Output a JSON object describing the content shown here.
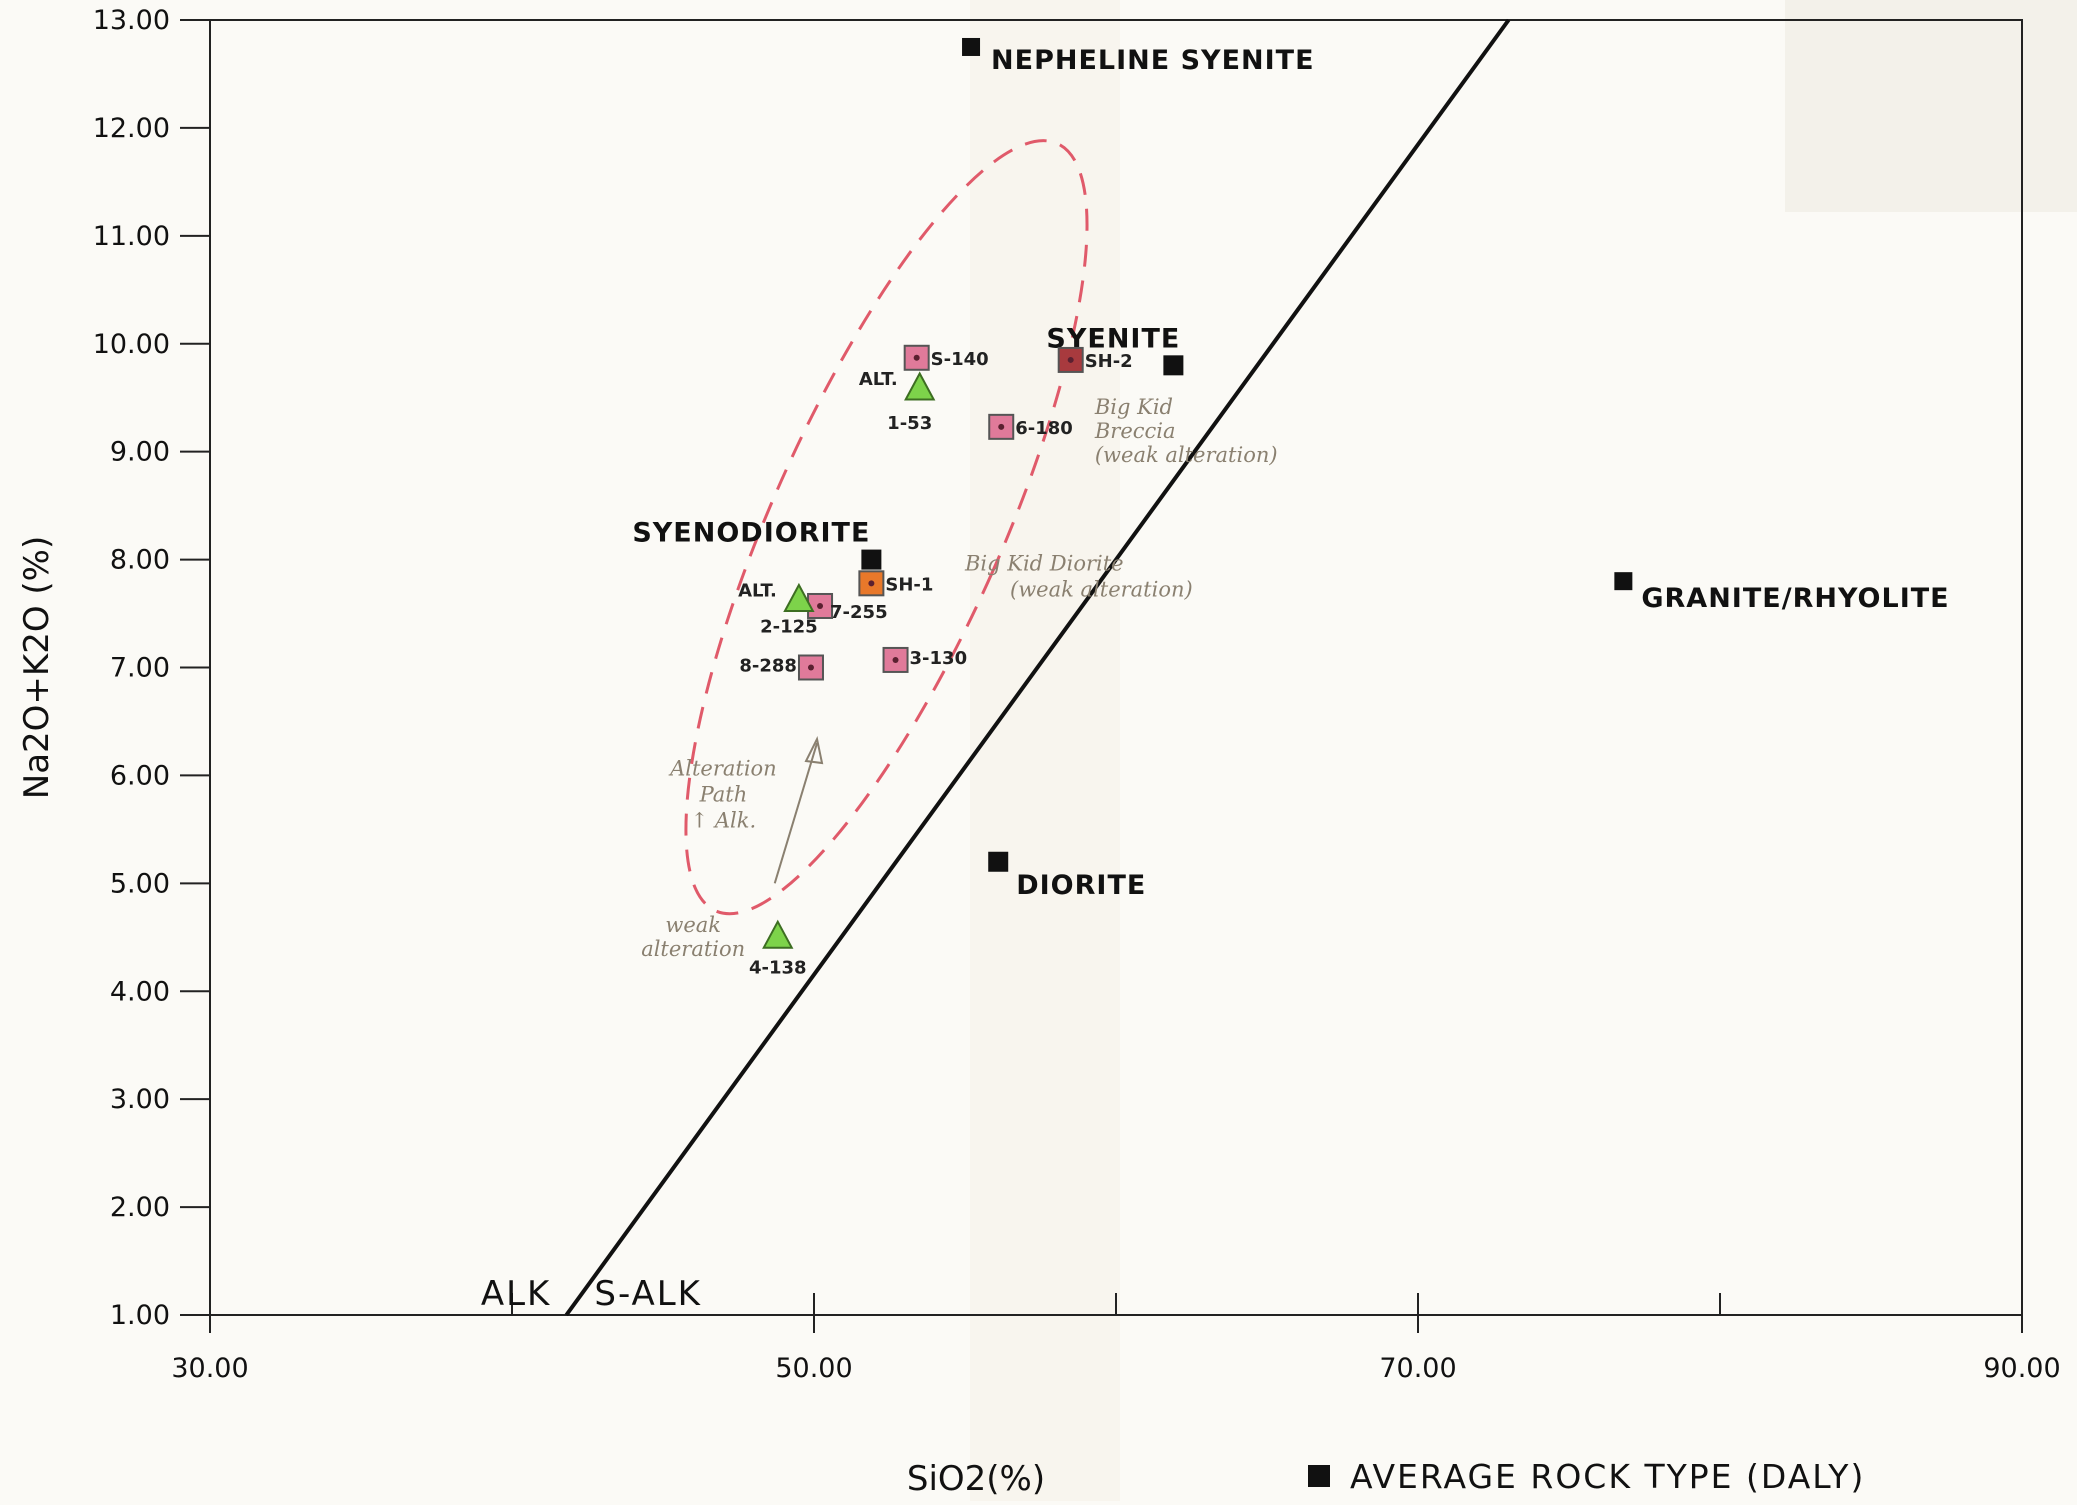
{
  "chart_data": {
    "type": "scatter",
    "xlabel": "SiO2 (%)",
    "ylabel": "Na2O+K2O (%)",
    "xlim": [
      30,
      90
    ],
    "ylim": [
      1,
      13
    ],
    "x_ticks": [
      "30.00",
      "50.00",
      "70.00",
      "90.00"
    ],
    "y_ticks": [
      "1.00",
      "2.00",
      "3.00",
      "4.00",
      "5.00",
      "6.00",
      "7.00",
      "8.00",
      "9.00",
      "10.00",
      "11.00",
      "12.00",
      "13.00"
    ],
    "grid": false,
    "legend": {
      "label": "AVERAGE ROCK TYPE (DALY)",
      "placement": "bottom-right"
    },
    "dividing_line": {
      "points": [
        [
          41.8,
          1.0
        ],
        [
          73.0,
          13.0
        ]
      ],
      "left_label": "ALK",
      "right_label": "S-ALK"
    },
    "reference_rocks": [
      {
        "name": "NEPHELINE SYENITE",
        "x": 55.2,
        "y": 12.75
      },
      {
        "name": "SYENITE",
        "x": 61.9,
        "y": 9.8
      },
      {
        "name": "SYENODIORITE",
        "x": 51.9,
        "y": 8.0
      },
      {
        "name": "DIORITE",
        "x": 56.1,
        "y": 5.2
      },
      {
        "name": "GRANITE/RHYOLITE",
        "x": 76.8,
        "y": 7.8
      }
    ],
    "samples": [
      {
        "label": "S-140",
        "x": 53.4,
        "y": 9.87,
        "marker": "square",
        "color": "#e07a9a"
      },
      {
        "label": "6-180",
        "x": 56.2,
        "y": 9.23,
        "marker": "square",
        "color": "#e07a9a"
      },
      {
        "label": "SH-2",
        "x": 58.5,
        "y": 9.85,
        "marker": "square",
        "color": "#a83a3e"
      },
      {
        "label": "7-255",
        "x": 50.2,
        "y": 7.57,
        "marker": "square",
        "color": "#e07a9a"
      },
      {
        "label": "SH-1",
        "x": 51.9,
        "y": 7.78,
        "marker": "square",
        "color": "#e8782a"
      },
      {
        "label": "8-288",
        "x": 49.9,
        "y": 7.0,
        "marker": "square",
        "color": "#e07a9a"
      },
      {
        "label": "3-130",
        "x": 52.7,
        "y": 7.07,
        "marker": "square",
        "color": "#e07a9a"
      },
      {
        "label": "1-53",
        "x": 53.5,
        "y": 9.58,
        "marker": "triangle",
        "color": "#7dd34a",
        "prefix": "ALT."
      },
      {
        "label": "2-125",
        "x": 49.5,
        "y": 7.62,
        "marker": "triangle",
        "color": "#7dd34a",
        "prefix": "ALT."
      },
      {
        "label": "4-138",
        "x": 48.8,
        "y": 4.5,
        "marker": "triangle",
        "color": "#7dd34a"
      }
    ],
    "annotations": [
      {
        "id": "breccia",
        "lines": [
          "Big Kid",
          "Breccia",
          "(weak alteration)"
        ]
      },
      {
        "id": "diorite",
        "lines": [
          "Big Kid Diorite",
          "(weak alteration)"
        ]
      },
      {
        "id": "path",
        "lines": [
          "Alteration",
          "Path",
          "↑ Alk."
        ]
      },
      {
        "id": "weak",
        "lines": [
          "weak",
          "alteration"
        ]
      }
    ],
    "colors": {
      "reference": "#111111",
      "ellipse": "#e05a6a",
      "annotation": "#8a8070",
      "line": "#111111"
    }
  }
}
